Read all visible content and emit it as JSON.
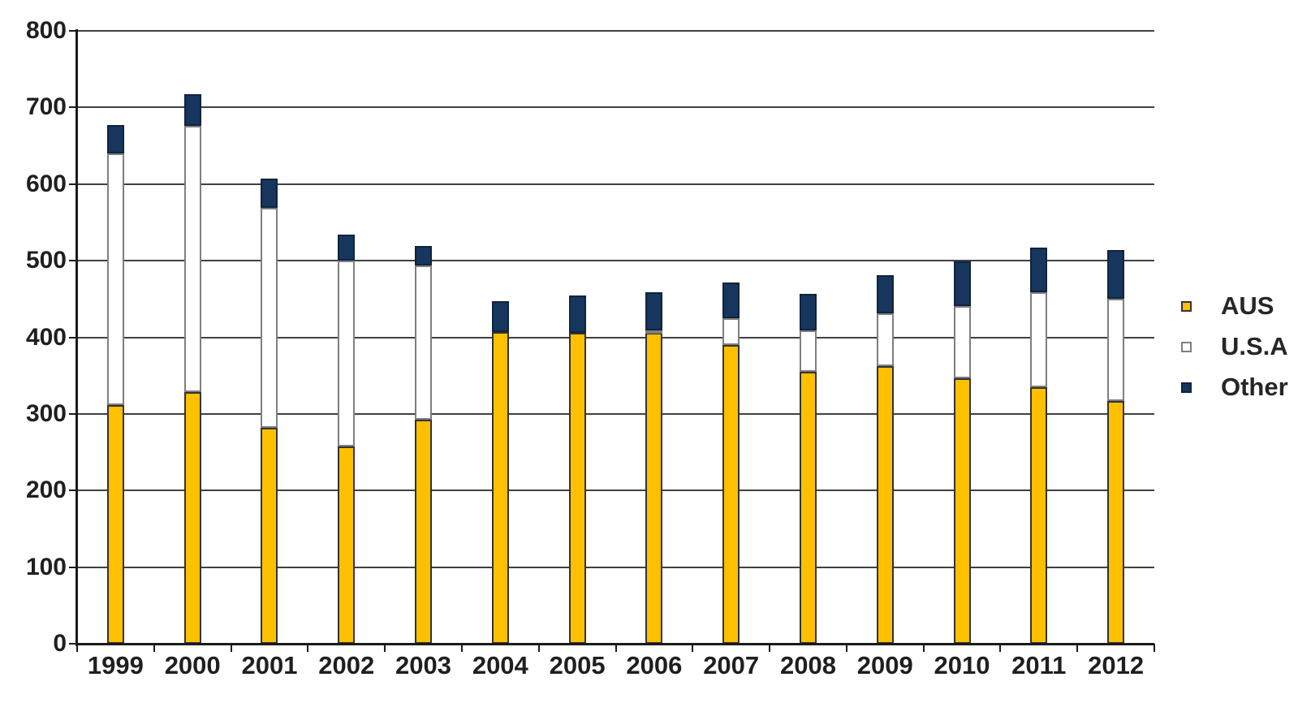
{
  "chart_data": {
    "type": "bar",
    "stacked": true,
    "title": "",
    "xlabel": "",
    "ylabel": "",
    "categories": [
      "1999",
      "2000",
      "2001",
      "2002",
      "2003",
      "2004",
      "2005",
      "2006",
      "2007",
      "2008",
      "2009",
      "2010",
      "2011",
      "2012"
    ],
    "series": [
      {
        "name": "AUS",
        "color": "#FFC000",
        "border": "#333333",
        "values": [
          312,
          328,
          282,
          258,
          292,
          407,
          406,
          406,
          390,
          355,
          362,
          347,
          335,
          317
        ]
      },
      {
        "name": "U.S.A",
        "color": "#FFFFFF",
        "border": "#7F7F7F",
        "values": [
          328,
          348,
          287,
          242,
          202,
          0,
          0,
          3,
          35,
          54,
          69,
          94,
          124,
          133
        ]
      },
      {
        "name": "Other",
        "color": "#17365D",
        "border": "#10243E",
        "values": [
          37,
          41,
          38,
          34,
          25,
          40,
          49,
          50,
          46,
          48,
          50,
          58,
          58,
          64
        ]
      }
    ],
    "totals": [
      677,
      717,
      607,
      534,
      519,
      447,
      455,
      459,
      471,
      457,
      481,
      499,
      517,
      514
    ],
    "ylim": [
      0,
      800
    ],
    "y_tick_interval": 100,
    "y_ticks": [
      "0",
      "100",
      "200",
      "300",
      "400",
      "500",
      "600",
      "700",
      "800"
    ],
    "grid": true,
    "legend_position": "right",
    "legend": [
      "AUS",
      "U.S.A",
      "Other"
    ],
    "colors": {
      "background": "#FFFFFF",
      "gridline": "#404040",
      "axis": "#1A1A1A",
      "tick_text": "#1F1F1F",
      "legend_text": "#262626"
    }
  }
}
